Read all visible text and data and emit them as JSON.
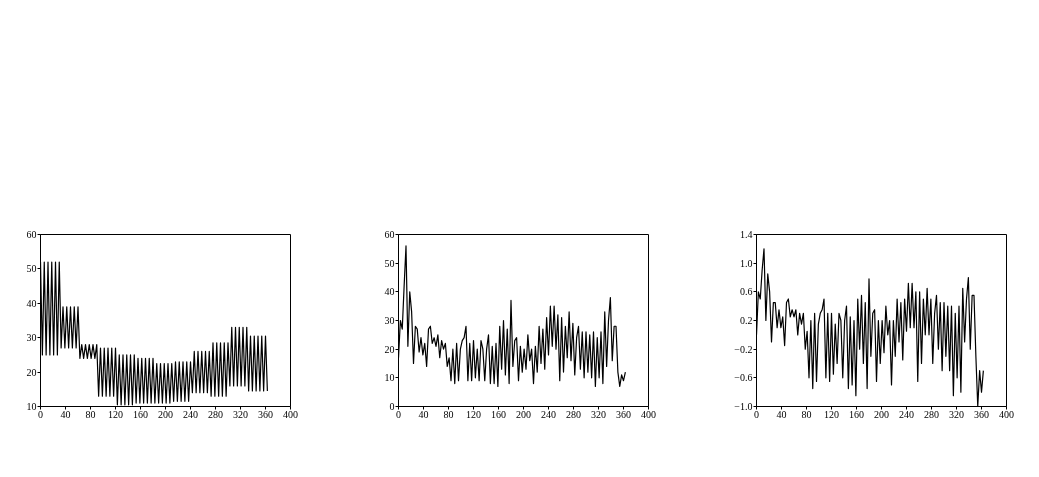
{
  "chart_data": [
    {
      "type": "line",
      "xlim": [
        0,
        400
      ],
      "xticks": [
        0,
        40,
        80,
        120,
        160,
        200,
        240,
        280,
        320,
        360,
        400
      ],
      "ylim": [
        10,
        60
      ],
      "yticks": [
        10,
        20,
        30,
        40,
        50,
        60
      ],
      "x": [
        0,
        3,
        6,
        9,
        12,
        15,
        18,
        21,
        24,
        27,
        30,
        33,
        36,
        39,
        42,
        45,
        48,
        51,
        54,
        57,
        60,
        63,
        66,
        69,
        72,
        75,
        78,
        81,
        84,
        87,
        90,
        93,
        96,
        99,
        102,
        105,
        108,
        111,
        114,
        117,
        120,
        123,
        126,
        129,
        132,
        135,
        138,
        141,
        144,
        147,
        150,
        153,
        156,
        159,
        162,
        165,
        168,
        171,
        174,
        177,
        180,
        183,
        186,
        189,
        192,
        195,
        198,
        201,
        204,
        207,
        210,
        213,
        216,
        219,
        222,
        225,
        228,
        231,
        234,
        237,
        240,
        243,
        246,
        249,
        252,
        255,
        258,
        261,
        264,
        267,
        270,
        273,
        276,
        279,
        282,
        285,
        288,
        291,
        294,
        297,
        300,
        303,
        306,
        309,
        312,
        315,
        318,
        321,
        324,
        327,
        330,
        333,
        336,
        339,
        342,
        345,
        348,
        351,
        354,
        357,
        360,
        363
      ],
      "series": [
        {
          "color": "#000000",
          "values": [
            52,
            25,
            52,
            25,
            52,
            25,
            52,
            25,
            52,
            25,
            52,
            27,
            39,
            27,
            39,
            27,
            39,
            27,
            39,
            27,
            39,
            24,
            28,
            24,
            28,
            24,
            28,
            24,
            28,
            24,
            28,
            13,
            27,
            13,
            27,
            13,
            27,
            13,
            27,
            13,
            27,
            10.5,
            25,
            10.5,
            25,
            10.5,
            25,
            10.5,
            25,
            10.5,
            25,
            11,
            24,
            11,
            24,
            11,
            24,
            11,
            24,
            11,
            24,
            11,
            22.5,
            11,
            22.5,
            11,
            22.5,
            11,
            22.5,
            11,
            22.5,
            11.5,
            23,
            11.5,
            23,
            11.5,
            23,
            11.5,
            23,
            11.5,
            23,
            14,
            26,
            14,
            26,
            14,
            26,
            14,
            26,
            14,
            26,
            13,
            28.5,
            13,
            28.5,
            13,
            28.5,
            13,
            28.5,
            13,
            28.5,
            16,
            33,
            16,
            33,
            16,
            33,
            16,
            33,
            16,
            33,
            14.5,
            30.5,
            14.5,
            30.5,
            14.5,
            30.5,
            14.5,
            30.5,
            14.5,
            30.5,
            14.5
          ]
        }
      ]
    },
    {
      "type": "line",
      "xlim": [
        0,
        400
      ],
      "xticks": [
        0,
        40,
        80,
        120,
        160,
        200,
        240,
        280,
        320,
        360,
        400
      ],
      "ylim": [
        0,
        60
      ],
      "yticks": [
        0,
        10,
        20,
        30,
        40,
        50,
        60
      ],
      "x": [
        0,
        3,
        6,
        9,
        12,
        15,
        18,
        21,
        24,
        27,
        30,
        33,
        36,
        39,
        42,
        45,
        48,
        51,
        54,
        57,
        60,
        63,
        66,
        69,
        72,
        75,
        78,
        81,
        84,
        87,
        90,
        93,
        96,
        99,
        102,
        105,
        108,
        111,
        114,
        117,
        120,
        123,
        126,
        129,
        132,
        135,
        138,
        141,
        144,
        147,
        150,
        153,
        156,
        159,
        162,
        165,
        168,
        171,
        174,
        177,
        180,
        183,
        186,
        189,
        192,
        195,
        198,
        201,
        204,
        207,
        210,
        213,
        216,
        219,
        222,
        225,
        228,
        231,
        234,
        237,
        240,
        243,
        246,
        249,
        252,
        255,
        258,
        261,
        264,
        267,
        270,
        273,
        276,
        279,
        282,
        285,
        288,
        291,
        294,
        297,
        300,
        303,
        306,
        309,
        312,
        315,
        318,
        321,
        324,
        327,
        330,
        333,
        336,
        339,
        342,
        345,
        348,
        351,
        354,
        357,
        360,
        363
      ],
      "series": [
        {
          "color": "#000000",
          "values": [
            17,
            30,
            27,
            42,
            56,
            21,
            40,
            33,
            15,
            28,
            27,
            19,
            24,
            18,
            22,
            14,
            27,
            28,
            22,
            24,
            21,
            25,
            17,
            23,
            20,
            22,
            14,
            17,
            9,
            20,
            8,
            22,
            9,
            20,
            23,
            24,
            28,
            9,
            22,
            9,
            23,
            10,
            20,
            9,
            23,
            20,
            9,
            20,
            25,
            8,
            21,
            8,
            22,
            7,
            28,
            13,
            30,
            11,
            27,
            8,
            37,
            14,
            23,
            24,
            9,
            21,
            12,
            20,
            13,
            25,
            16,
            20,
            8,
            21,
            12,
            28,
            15,
            27,
            13,
            31,
            18,
            35,
            21,
            35,
            20,
            32,
            9,
            31,
            12,
            28,
            17,
            33,
            16,
            29,
            11,
            24,
            28,
            13,
            26,
            10,
            26,
            12,
            25,
            10,
            26,
            7,
            24,
            10,
            26,
            8,
            33,
            14,
            30,
            38,
            16,
            28,
            28,
            12,
            7,
            11,
            9,
            12
          ]
        }
      ]
    },
    {
      "type": "line",
      "xlim": [
        0,
        400
      ],
      "xticks": [
        0,
        40,
        80,
        120,
        160,
        200,
        240,
        280,
        320,
        360,
        400
      ],
      "ylim": [
        -1.0,
        1.4
      ],
      "yticks": [
        {
          "value": -1.0,
          "label": "−1.0"
        },
        {
          "value": -0.6,
          "label": "−0.6"
        },
        {
          "value": -0.2,
          "label": "−0.2"
        },
        0.2,
        0.6,
        {
          "value": 1.0,
          "label": "1.0"
        },
        1.4
      ],
      "x": [
        0,
        3,
        6,
        9,
        12,
        15,
        18,
        21,
        24,
        27,
        30,
        33,
        36,
        39,
        42,
        45,
        48,
        51,
        54,
        57,
        60,
        63,
        66,
        69,
        72,
        75,
        78,
        81,
        84,
        87,
        90,
        93,
        96,
        99,
        102,
        105,
        108,
        111,
        114,
        117,
        120,
        123,
        126,
        129,
        132,
        135,
        138,
        141,
        144,
        147,
        150,
        153,
        156,
        159,
        162,
        165,
        168,
        171,
        174,
        177,
        180,
        183,
        186,
        189,
        192,
        195,
        198,
        201,
        204,
        207,
        210,
        213,
        216,
        219,
        222,
        225,
        228,
        231,
        234,
        237,
        240,
        243,
        246,
        249,
        252,
        255,
        258,
        261,
        264,
        267,
        270,
        273,
        276,
        279,
        282,
        285,
        288,
        291,
        294,
        297,
        300,
        303,
        306,
        309,
        312,
        315,
        318,
        321,
        324,
        327,
        330,
        333,
        336,
        339,
        342,
        345,
        348,
        351,
        354,
        357,
        360,
        363
      ],
      "series": [
        {
          "color": "#000000",
          "values": [
            0.0,
            0.6,
            0.5,
            0.9,
            1.2,
            0.2,
            0.85,
            0.6,
            -0.1,
            0.45,
            0.45,
            0.1,
            0.35,
            0.1,
            0.25,
            -0.15,
            0.45,
            0.5,
            0.25,
            0.35,
            0.25,
            0.35,
            0.0,
            0.3,
            0.15,
            0.3,
            -0.2,
            0.05,
            -0.6,
            0.2,
            -0.75,
            0.3,
            -0.65,
            0.15,
            0.3,
            0.35,
            0.5,
            -0.6,
            0.3,
            -0.65,
            0.3,
            -0.55,
            0.15,
            -0.4,
            0.3,
            0.2,
            -0.6,
            0.2,
            0.4,
            -0.75,
            0.25,
            -0.7,
            0.2,
            -0.85,
            0.5,
            -0.2,
            0.55,
            -0.4,
            0.45,
            -0.75,
            0.78,
            -0.3,
            0.3,
            0.35,
            -0.65,
            0.2,
            -0.4,
            0.2,
            -0.25,
            0.4,
            0.0,
            0.2,
            -0.7,
            0.2,
            -0.3,
            0.5,
            -0.1,
            0.45,
            -0.35,
            0.5,
            0.05,
            0.72,
            0.1,
            0.72,
            0.1,
            0.6,
            -0.65,
            0.6,
            -0.4,
            0.5,
            0.0,
            0.65,
            0.0,
            0.5,
            -0.4,
            0.3,
            0.55,
            -0.2,
            0.45,
            -0.5,
            0.45,
            -0.3,
            0.4,
            -0.5,
            0.4,
            -0.85,
            0.3,
            -0.6,
            0.4,
            -0.8,
            0.65,
            -0.1,
            0.5,
            0.8,
            -0.2,
            0.55,
            0.55,
            -0.3,
            -1.0,
            -0.5,
            -0.8,
            -0.5
          ]
        }
      ]
    }
  ]
}
